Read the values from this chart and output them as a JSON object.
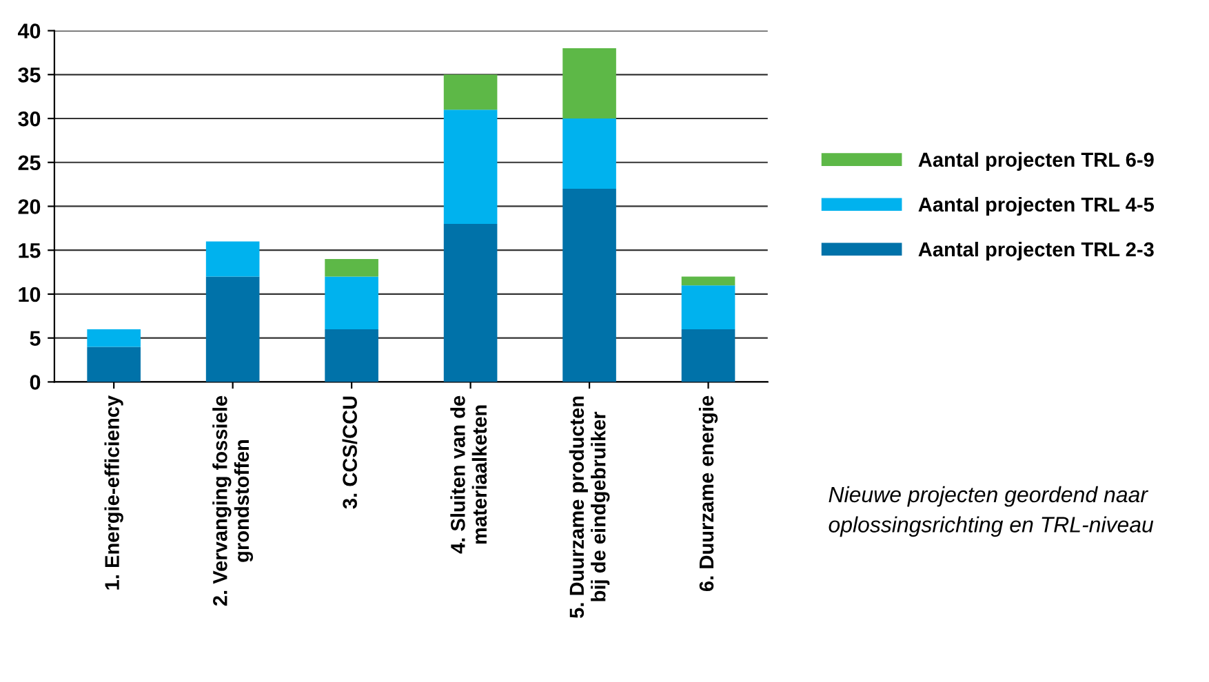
{
  "chart_data": {
    "type": "bar",
    "stacked": true,
    "categories": [
      "1. Energie-efficiency",
      "2. Vervanging fossiele\ngrondstoffen",
      "3. CCS/CCU",
      "4. Sluiten van de\nmateriaalketen",
      "5. Duurzame producten\nbij de eindgebruiker",
      "6. Duurzame energie"
    ],
    "series": [
      {
        "name": "Aantal projecten TRL 2-3",
        "color": "#0072a9",
        "values": [
          4,
          12,
          6,
          18,
          22,
          6
        ]
      },
      {
        "name": "Aantal projecten TRL 4-5",
        "color": "#00b2ee",
        "values": [
          2,
          4,
          6,
          13,
          8,
          5
        ]
      },
      {
        "name": "Aantal projecten TRL 6-9",
        "color": "#5db847",
        "values": [
          0,
          0,
          2,
          4,
          8,
          1
        ]
      }
    ],
    "ylim": [
      0,
      40
    ],
    "yticks": [
      0,
      5,
      10,
      15,
      20,
      25,
      30,
      35,
      40
    ],
    "grid": "y",
    "legend": "right",
    "annotations": [
      "Nieuwe projecten geordend naar\noplossingsrichting en TRL-niveau"
    ]
  }
}
